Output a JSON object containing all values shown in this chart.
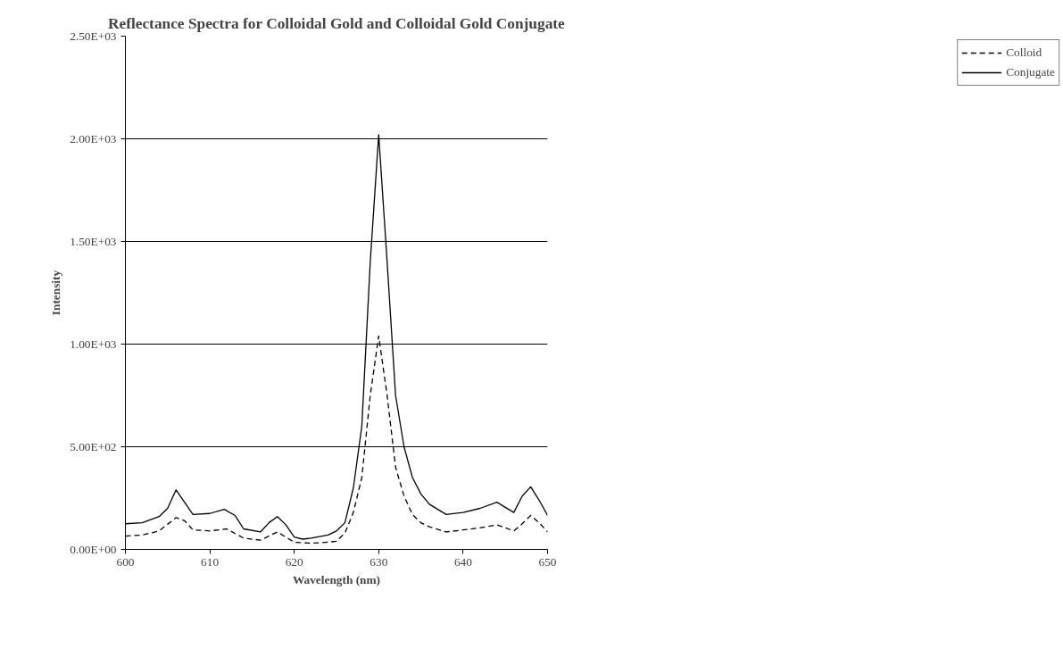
{
  "chart_data": {
    "type": "line",
    "title": "Reflectance Spectra for Colloidal Gold and Colloidal Gold Conjugate",
    "xlabel": "Wavelength (nm)",
    "ylabel": "Intensity",
    "xlim": [
      600,
      650
    ],
    "xticks": [
      600,
      610,
      620,
      630,
      640,
      650
    ],
    "ylim": [
      0,
      2500
    ],
    "yticks": [
      {
        "value": 0,
        "label": "0.00E+00"
      },
      {
        "value": 500,
        "label": "5.00E+02"
      },
      {
        "value": 1000,
        "label": "1.00E+03"
      },
      {
        "value": 1500,
        "label": "1.50E+03"
      },
      {
        "value": 2000,
        "label": "2.00E+03"
      },
      {
        "value": 2500,
        "label": "2.50E+03"
      }
    ],
    "grid": "y",
    "legend": "right",
    "marker": "none",
    "series": [
      {
        "name": "Colloid",
        "color": "#000000",
        "line_style": "dashed",
        "x": [
          600,
          602,
          604,
          606,
          607,
          608,
          610,
          612,
          614,
          616,
          618,
          620,
          622,
          624,
          625,
          626,
          627,
          628,
          629,
          630,
          631,
          632,
          633,
          634,
          635,
          636,
          638,
          640,
          642,
          644,
          645,
          646,
          647,
          648,
          649,
          650
        ],
        "values": [
          65,
          70,
          90,
          155,
          140,
          95,
          90,
          100,
          55,
          45,
          85,
          35,
          30,
          35,
          40,
          80,
          180,
          350,
          750,
          1040,
          750,
          400,
          260,
          170,
          130,
          110,
          85,
          95,
          105,
          120,
          105,
          90,
          125,
          165,
          130,
          85
        ]
      },
      {
        "name": "Conjugate",
        "color": "#000000",
        "line_style": "solid",
        "x": [
          600,
          602,
          604,
          605,
          606,
          607,
          608,
          610,
          611.7,
          613,
          614,
          616,
          617,
          618,
          619,
          620,
          621,
          622,
          624,
          625,
          626,
          627,
          628,
          629,
          630,
          631,
          632,
          633,
          634,
          635,
          636,
          638,
          640,
          642,
          644,
          645,
          646,
          647,
          648,
          649,
          650
        ],
        "values": [
          125,
          130,
          160,
          200,
          290,
          230,
          170,
          175,
          195,
          165,
          100,
          85,
          130,
          160,
          120,
          60,
          50,
          55,
          70,
          90,
          130,
          300,
          600,
          1400,
          2020,
          1400,
          750,
          500,
          350,
          270,
          220,
          170,
          180,
          200,
          230,
          205,
          180,
          260,
          305,
          240,
          165
        ]
      }
    ]
  }
}
